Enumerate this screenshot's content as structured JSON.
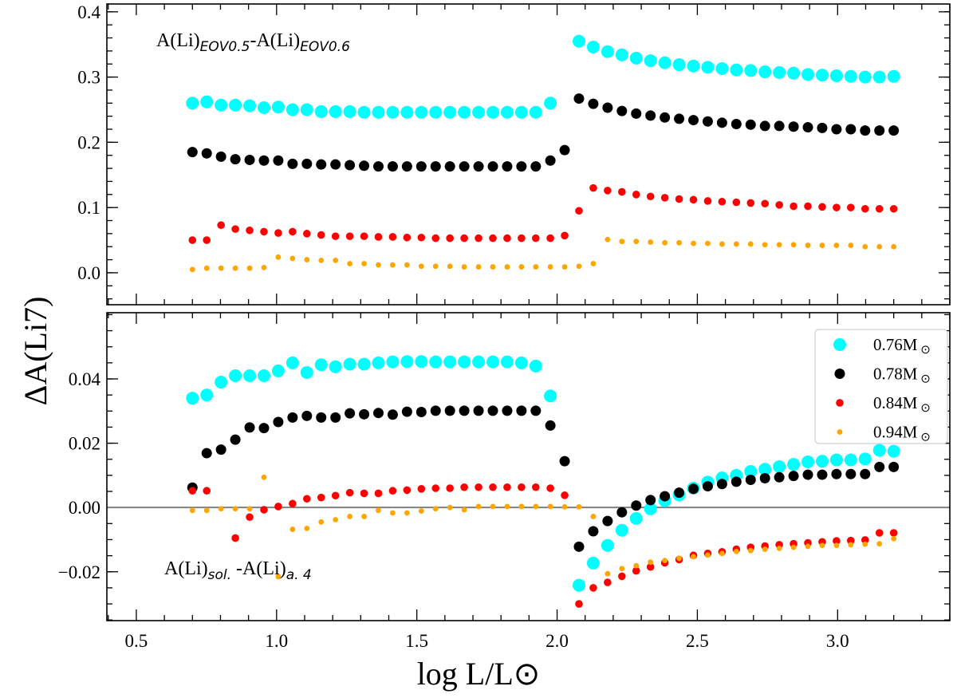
{
  "chart_data": [
    {
      "type": "scatter",
      "panel": "top",
      "annotation": {
        "main1": "A(Li)",
        "sub1": "EOV0.5",
        "main2": "-A(Li)",
        "sub2": "EOV0.6"
      },
      "xlim": [
        0.395,
        3.4
      ],
      "ylim": [
        -0.049,
        0.412
      ],
      "xticks": [
        0.5,
        1.0,
        1.5,
        2.0,
        2.5,
        3.0
      ],
      "yticks": [
        0.0,
        0.1,
        0.2,
        0.3,
        0.4
      ],
      "ytick_labels": [
        "0.0",
        "0.1",
        "0.2",
        "0.3",
        "0.4"
      ],
      "x": [
        0.7,
        0.751,
        0.802,
        0.853,
        0.904,
        0.955,
        1.006,
        1.057,
        1.108,
        1.159,
        1.21,
        1.261,
        1.312,
        1.363,
        1.414,
        1.465,
        1.516,
        1.567,
        1.618,
        1.669,
        1.72,
        1.771,
        1.822,
        1.873,
        1.924,
        1.976,
        2.027,
        2.078,
        2.129,
        2.18,
        2.231,
        2.282,
        2.333,
        2.384,
        2.435,
        2.486,
        2.537,
        2.588,
        2.639,
        2.69,
        2.741,
        2.792,
        2.843,
        2.894,
        2.945,
        2.996,
        3.047,
        3.098,
        3.149,
        3.2
      ],
      "series": [
        {
          "name": "0.76M⊙",
          "color": "#00ffff",
          "values": [
            0.26,
            0.262,
            0.257,
            0.257,
            0.256,
            0.253,
            0.254,
            0.25,
            0.25,
            0.247,
            0.247,
            0.247,
            0.246,
            0.246,
            0.246,
            0.246,
            0.246,
            0.246,
            0.246,
            0.246,
            0.246,
            0.246,
            0.246,
            0.246,
            0.246,
            0.26,
            null,
            0.355,
            0.346,
            0.339,
            0.334,
            0.329,
            0.325,
            0.322,
            0.319,
            0.317,
            0.315,
            0.313,
            0.311,
            0.31,
            0.308,
            0.307,
            0.306,
            0.304,
            0.303,
            0.302,
            0.301,
            0.3,
            0.3,
            0.301
          ]
        },
        {
          "name": "0.78M⊙",
          "color": "#000000",
          "values": [
            0.185,
            0.183,
            0.178,
            0.174,
            0.173,
            0.172,
            0.172,
            0.167,
            0.167,
            0.166,
            0.166,
            0.165,
            0.164,
            0.163,
            0.163,
            0.163,
            0.163,
            0.163,
            0.163,
            0.163,
            0.163,
            0.163,
            0.163,
            0.163,
            0.163,
            0.172,
            0.188,
            0.267,
            0.259,
            0.253,
            0.248,
            0.244,
            0.241,
            0.238,
            0.236,
            0.234,
            0.232,
            0.23,
            0.228,
            0.227,
            0.225,
            0.225,
            0.224,
            0.223,
            0.222,
            0.22,
            0.22,
            0.218,
            0.218,
            0.218
          ]
        },
        {
          "name": "0.84M⊙",
          "color": "#ff0000",
          "values": [
            0.05,
            0.05,
            0.073,
            0.067,
            0.065,
            0.063,
            0.061,
            0.063,
            0.06,
            0.058,
            0.056,
            0.056,
            0.056,
            0.055,
            0.055,
            0.054,
            0.054,
            0.053,
            0.053,
            0.053,
            0.053,
            0.053,
            0.053,
            0.053,
            0.053,
            0.053,
            0.057,
            0.095,
            0.13,
            0.126,
            0.124,
            0.12,
            0.117,
            0.115,
            0.113,
            0.112,
            0.11,
            0.109,
            0.108,
            0.107,
            0.106,
            0.104,
            0.102,
            0.102,
            0.101,
            0.1,
            0.1,
            0.098,
            0.098,
            0.098
          ]
        },
        {
          "name": "0.94M⊙",
          "color": "#ffa500",
          "values": [
            0.005,
            0.007,
            0.007,
            0.007,
            0.007,
            0.008,
            0.024,
            0.022,
            0.02,
            0.019,
            0.019,
            0.014,
            0.014,
            0.012,
            0.012,
            0.012,
            0.01,
            0.01,
            0.01,
            0.009,
            0.009,
            0.009,
            0.009,
            0.009,
            0.009,
            0.009,
            0.009,
            0.01,
            0.014,
            0.051,
            0.048,
            0.048,
            0.047,
            0.046,
            0.046,
            0.045,
            0.045,
            0.044,
            0.044,
            0.044,
            0.043,
            0.043,
            0.043,
            0.042,
            0.042,
            0.042,
            0.042,
            0.04,
            0.04,
            0.04
          ]
        }
      ]
    },
    {
      "type": "scatter",
      "panel": "bottom",
      "annotation": {
        "main1": "A(Li)",
        "sub1": "sol.",
        "main2": " -A(Li)",
        "sub2": "a. 4"
      },
      "xlabel": "log L/L⊙",
      "xlim": [
        0.395,
        3.4
      ],
      "ylim": [
        -0.0352,
        0.0606
      ],
      "xticks": [
        0.5,
        1.0,
        1.5,
        2.0,
        2.5,
        3.0
      ],
      "xtick_labels": [
        "0.5",
        "1.0",
        "1.5",
        "2.0",
        "2.5",
        "3.0"
      ],
      "yticks": [
        -0.02,
        0.0,
        0.02,
        0.04
      ],
      "ytick_labels": [
        "−0.02",
        "0.00",
        "0.02",
        "0.04"
      ],
      "hline": {
        "y": 0.0,
        "color": "#808080"
      },
      "legend": "top-right",
      "x": [
        0.7,
        0.751,
        0.802,
        0.853,
        0.904,
        0.955,
        1.006,
        1.057,
        1.108,
        1.159,
        1.21,
        1.261,
        1.312,
        1.363,
        1.414,
        1.465,
        1.516,
        1.567,
        1.618,
        1.669,
        1.72,
        1.771,
        1.822,
        1.873,
        1.924,
        1.976,
        2.027,
        2.078,
        2.129,
        2.18,
        2.231,
        2.282,
        2.333,
        2.384,
        2.435,
        2.486,
        2.537,
        2.588,
        2.639,
        2.69,
        2.741,
        2.792,
        2.843,
        2.894,
        2.945,
        2.996,
        3.047,
        3.098,
        3.149,
        3.2
      ],
      "series": [
        {
          "name": "0.76M⊙",
          "color": "#00ffff",
          "values": [
            0.034,
            0.035,
            0.039,
            0.041,
            0.041,
            0.041,
            0.0425,
            0.045,
            0.042,
            0.0444,
            0.0438,
            0.0446,
            0.0446,
            0.045,
            0.0453,
            0.0454,
            0.0454,
            0.0453,
            0.0453,
            0.0453,
            0.0453,
            0.0453,
            0.0453,
            0.045,
            0.044,
            0.0347,
            null,
            -0.0242,
            -0.0173,
            -0.0118,
            -0.0071,
            -0.0034,
            -0.0004,
            0.0021,
            0.0039,
            0.006,
            0.0079,
            0.0092,
            0.01,
            0.0112,
            0.0119,
            0.0127,
            0.0134,
            0.0142,
            0.0144,
            0.0148,
            0.0148,
            0.0151,
            0.0178,
            0.0175
          ]
        },
        {
          "name": "0.78M⊙",
          "color": "#000000",
          "values": [
            0.0062,
            0.0169,
            0.018,
            0.0211,
            0.0249,
            0.0247,
            0.0266,
            0.028,
            0.0285,
            0.028,
            0.028,
            0.0293,
            0.029,
            0.0294,
            0.0289,
            0.0298,
            0.0297,
            0.0301,
            0.0301,
            0.0301,
            0.0301,
            0.0301,
            0.0301,
            0.0301,
            0.0301,
            0.0255,
            0.0144,
            -0.0122,
            -0.0074,
            -0.0042,
            -0.0015,
            0.0006,
            0.0023,
            0.0035,
            0.0046,
            0.0058,
            0.0066,
            0.0073,
            0.008,
            0.0086,
            0.0091,
            0.0094,
            0.0098,
            0.0102,
            0.0102,
            0.0104,
            0.0104,
            0.0104,
            0.0126,
            0.0126
          ]
        },
        {
          "name": "0.84M⊙",
          "color": "#ff0000",
          "values": [
            0.0052,
            0.0052,
            null,
            -0.0095,
            -0.003,
            -0.0007,
            0.0003,
            0.0012,
            0.0027,
            0.0031,
            0.0037,
            0.0046,
            0.0044,
            0.0044,
            0.0052,
            0.0054,
            0.0058,
            0.006,
            0.006,
            0.0063,
            0.0063,
            0.0063,
            0.0063,
            0.0063,
            0.0063,
            0.006,
            0.0038,
            -0.03,
            -0.025,
            -0.0233,
            -0.0214,
            -0.0197,
            -0.0185,
            -0.0172,
            -0.0162,
            -0.0149,
            -0.0143,
            -0.0138,
            -0.013,
            -0.0124,
            -0.012,
            -0.0116,
            -0.0113,
            -0.011,
            -0.0107,
            -0.0104,
            -0.0103,
            -0.0101,
            -0.0079,
            -0.0079
          ]
        },
        {
          "name": "0.94M⊙",
          "color": "#ffa500",
          "values": [
            -0.0009,
            -0.0009,
            -0.0004,
            -0.0004,
            -0.0004,
            0.0094,
            -0.0215,
            -0.0068,
            -0.0065,
            -0.0045,
            -0.0038,
            -0.0028,
            -0.0028,
            -0.0009,
            -0.0017,
            -0.0017,
            -0.0011,
            -0.0004,
            0.0,
            -0.0007,
            0.0003,
            0.0003,
            0.0003,
            0.0003,
            0.0003,
            0.0003,
            0.0002,
            0.0002,
            -0.0028,
            -0.0206,
            -0.019,
            -0.0181,
            -0.017,
            -0.0165,
            -0.0158,
            -0.0153,
            -0.0148,
            -0.0143,
            -0.0137,
            -0.0134,
            -0.013,
            -0.0127,
            -0.0124,
            -0.0121,
            -0.0118,
            -0.0118,
            -0.0116,
            -0.0114,
            -0.0113,
            -0.0097
          ]
        }
      ]
    }
  ],
  "ylabel": "ΔA(Li7)"
}
